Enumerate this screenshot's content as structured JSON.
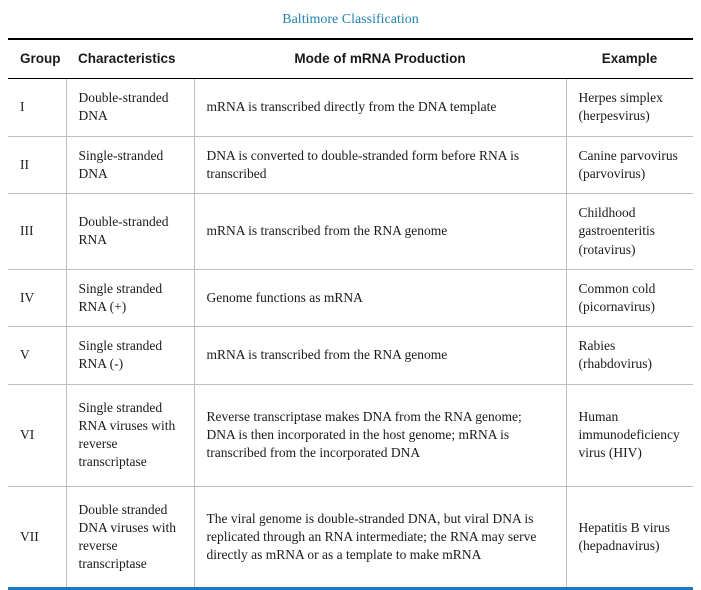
{
  "page": {
    "title": "Baltimore Classification"
  },
  "colors": {
    "title_text": "#2383ae",
    "bottom_border": "#1f78c1",
    "header_rule": "#000000",
    "row_rule": "#bfbfbf"
  },
  "table": {
    "headers": [
      "Group",
      "Characteristics",
      "Mode of mRNA Production",
      "Example"
    ],
    "rows": [
      {
        "group": "I",
        "characteristics": "Double-stranded DNA",
        "mode": "mRNA is transcribed directly from the DNA template",
        "example": "Herpes simplex (herpesvirus)"
      },
      {
        "group": "II",
        "characteristics": "Single-stranded DNA",
        "mode": "DNA is converted to double-stranded form before RNA is transcribed",
        "example": "Canine parvovirus (parvovirus)"
      },
      {
        "group": "III",
        "characteristics": "Double-stranded RNA",
        "mode": "mRNA is transcribed from the RNA genome",
        "example": "Childhood gastroenteritis (rotavirus)"
      },
      {
        "group": "IV",
        "characteristics": "Single stranded RNA (+)",
        "mode": "Genome functions as mRNA",
        "example": "Common cold (picornavirus)"
      },
      {
        "group": "V",
        "characteristics": "Single stranded RNA (-)",
        "mode": "mRNA is transcribed from the RNA genome",
        "example": "Rabies (rhabdovirus)"
      },
      {
        "group": "VI",
        "characteristics": "Single stranded RNA viruses with reverse transcriptase",
        "mode": "Reverse transcriptase makes DNA from the RNA genome; DNA is then incorporated in the host genome; mRNA is transcribed from the incorporated DNA",
        "example": "Human immunodeficiency virus (HIV)"
      },
      {
        "group": "VII",
        "characteristics": "Double stranded DNA viruses with reverse transcriptase",
        "mode": "The viral genome is double-stranded DNA, but viral DNA is replicated through an RNA intermediate; the RNA may serve directly as mRNA or as a template to make mRNA",
        "example": "Hepatitis B virus (hepadnavirus)"
      }
    ]
  }
}
